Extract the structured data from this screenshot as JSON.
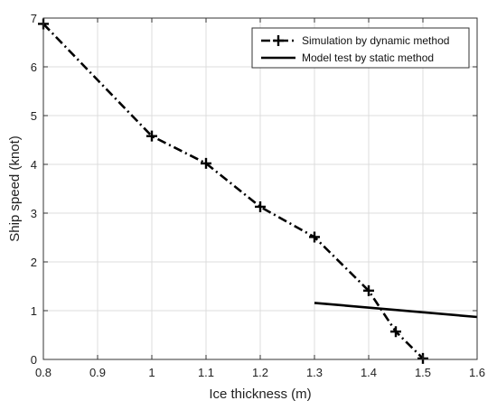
{
  "chart_data": {
    "type": "line",
    "title": "",
    "xlabel": "Ice thickness (m)",
    "ylabel": "Ship speed (knot)",
    "xlim": [
      0.8,
      1.6
    ],
    "ylim": [
      0,
      7
    ],
    "x_ticks": [
      "0.8",
      "0.9",
      "1",
      "1.1",
      "1.2",
      "1.3",
      "1.4",
      "1.5",
      "1.6"
    ],
    "y_ticks": [
      "0",
      "1",
      "2",
      "3",
      "4",
      "5",
      "6",
      "7"
    ],
    "grid": true,
    "legend_position": "top-right",
    "series": [
      {
        "name": "Simulation by dynamic method",
        "style": "dash-dot",
        "marker": "plus",
        "color": "#000000",
        "x": [
          0.8,
          1.0,
          1.1,
          1.2,
          1.3,
          1.4,
          1.45,
          1.5
        ],
        "y": [
          6.88,
          4.58,
          4.02,
          3.13,
          2.51,
          1.41,
          0.57,
          0.02
        ]
      },
      {
        "name": "Model test by static method",
        "style": "solid",
        "marker": "none",
        "color": "#000000",
        "x": [
          1.3,
          1.6
        ],
        "y": [
          1.16,
          0.87
        ]
      }
    ]
  }
}
